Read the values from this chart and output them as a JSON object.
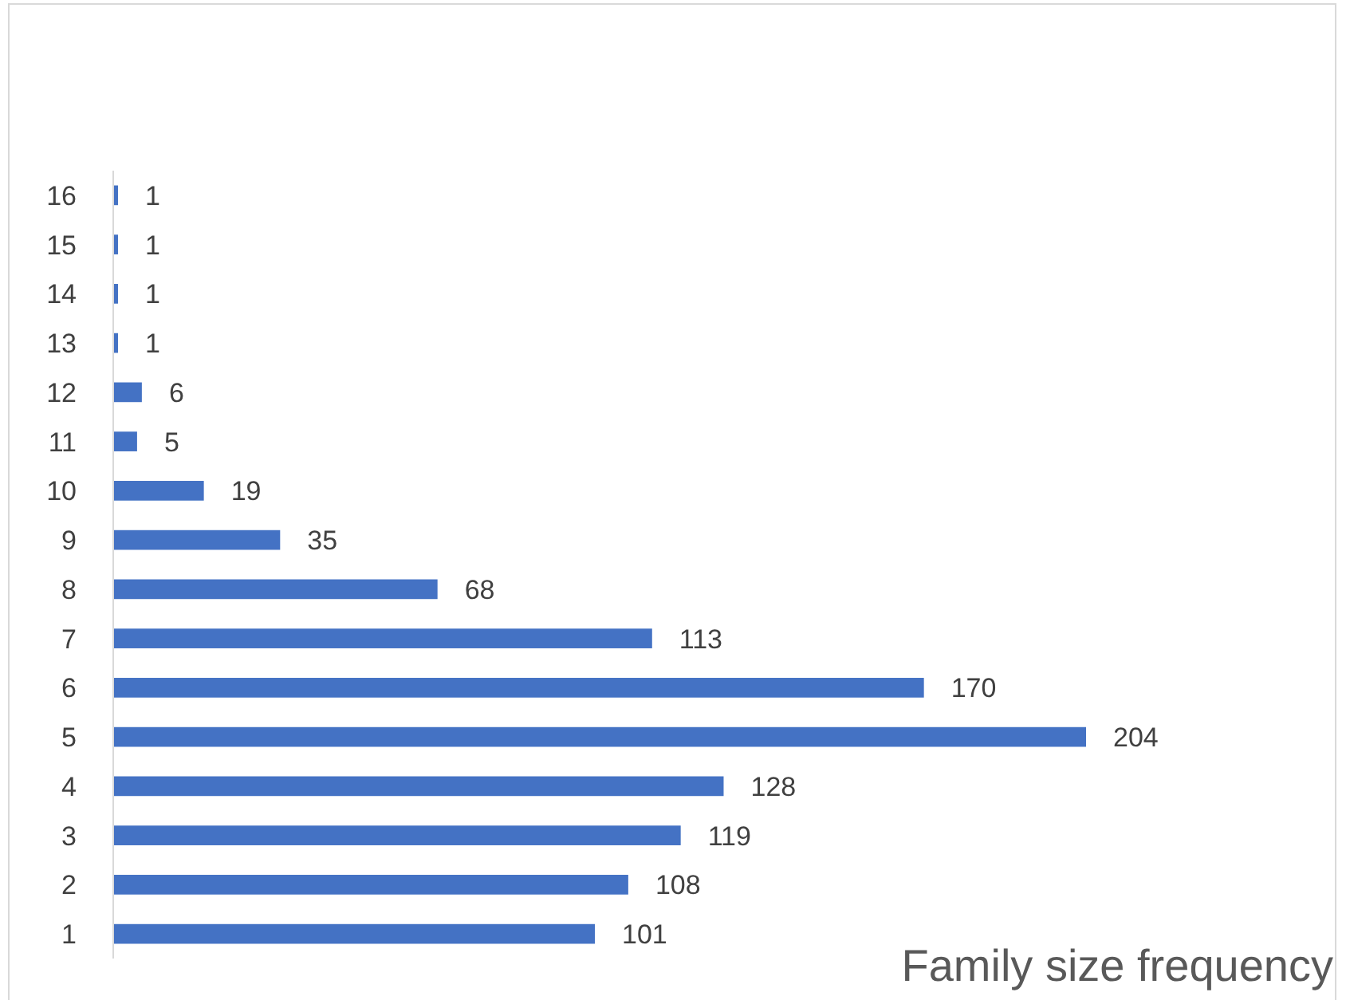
{
  "chart_data": {
    "type": "bar",
    "orientation": "horizontal",
    "title": "Family size frequency",
    "categories": [
      "16",
      "15",
      "14",
      "13",
      "12",
      "11",
      "10",
      "9",
      "8",
      "7",
      "6",
      "5",
      "4",
      "3",
      "2",
      "1"
    ],
    "values": [
      1,
      1,
      1,
      1,
      6,
      5,
      19,
      35,
      68,
      113,
      170,
      204,
      128,
      119,
      108,
      101
    ],
    "color": "#4472c4",
    "data_labels": true
  }
}
